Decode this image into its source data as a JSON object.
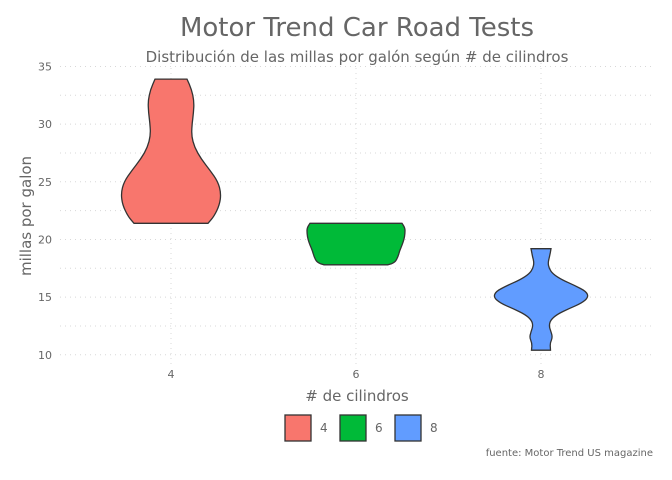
{
  "chart_data": {
    "type": "violin",
    "title": "Motor Trend Car Road Tests",
    "subtitle": "Distribución de las millas por galón según # de cilindros",
    "xlabel": "# de cilindros",
    "ylabel": "millas por galon",
    "caption": "fuente: Motor Trend US magazine",
    "categories": [
      "4",
      "6",
      "8"
    ],
    "yticks": [
      10,
      15,
      20,
      25,
      30,
      35
    ],
    "ylim": [
      9.2,
      35.3
    ],
    "grid": true,
    "legend_position": "bottom",
    "series": [
      {
        "name": "4",
        "color": "#F8766D",
        "min": 21.4,
        "max": 33.9,
        "profile": [
          [
            21.4,
            0.74
          ],
          [
            22.0,
            0.86
          ],
          [
            23.0,
            0.97
          ],
          [
            24.0,
            1.0
          ],
          [
            25.0,
            0.94
          ],
          [
            26.0,
            0.78
          ],
          [
            27.0,
            0.6
          ],
          [
            28.0,
            0.47
          ],
          [
            29.0,
            0.41
          ],
          [
            30.0,
            0.42
          ],
          [
            31.0,
            0.45
          ],
          [
            32.0,
            0.46
          ],
          [
            33.0,
            0.41
          ],
          [
            33.9,
            0.32
          ]
        ]
      },
      {
        "name": "6",
        "color": "#00BA38",
        "min": 17.8,
        "max": 21.4,
        "profile": [
          [
            17.8,
            0.64
          ],
          [
            18.0,
            0.78
          ],
          [
            18.5,
            0.84
          ],
          [
            19.0,
            0.87
          ],
          [
            19.5,
            0.92
          ],
          [
            20.0,
            0.96
          ],
          [
            20.5,
            0.98
          ],
          [
            21.0,
            0.98
          ],
          [
            21.4,
            0.92
          ]
        ]
      },
      {
        "name": "8",
        "color": "#619CFF",
        "min": 10.4,
        "max": 19.2,
        "profile": [
          [
            10.4,
            0.19
          ],
          [
            11.0,
            0.18
          ],
          [
            11.5,
            0.23
          ],
          [
            12.0,
            0.2
          ],
          [
            12.5,
            0.16
          ],
          [
            13.0,
            0.19
          ],
          [
            13.5,
            0.32
          ],
          [
            14.0,
            0.56
          ],
          [
            14.5,
            0.82
          ],
          [
            15.0,
            0.95
          ],
          [
            15.5,
            0.9
          ],
          [
            16.0,
            0.68
          ],
          [
            16.5,
            0.42
          ],
          [
            17.0,
            0.24
          ],
          [
            17.5,
            0.16
          ],
          [
            18.0,
            0.14
          ],
          [
            18.5,
            0.17
          ],
          [
            19.2,
            0.2
          ]
        ]
      }
    ]
  }
}
